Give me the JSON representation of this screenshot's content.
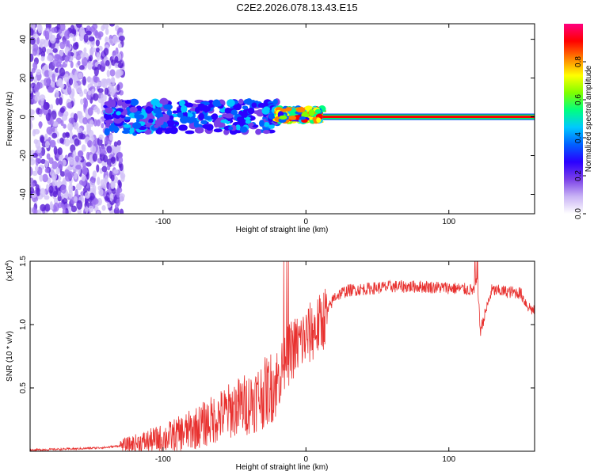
{
  "title": "C2E2.2026.078.13.43.E15",
  "colors": {
    "snr_line": "#e8312f",
    "signal_band": "#ff0000",
    "frame": "#000000"
  },
  "chart_data": [
    {
      "type": "heatmap",
      "name": "spectrogram",
      "xlabel": "Height of straight line (km)",
      "ylabel": "Frequency (Hz)",
      "xlim": [
        -193,
        160
      ],
      "ylim": [
        -50,
        48
      ],
      "xticks": [
        -100,
        0,
        100
      ],
      "yticks": [
        -40,
        -20,
        0,
        20,
        40
      ],
      "colorbar": {
        "label": "Normalized spectral amplitude",
        "range": [
          0.0,
          1.0
        ],
        "ticks": [
          0.0,
          0.2,
          0.4,
          0.6,
          0.8
        ],
        "tick_labels": [
          "0.0",
          "0.2",
          "0.4",
          "0.6",
          "0.8"
        ],
        "colormap": [
          "#ffffff",
          "#c9b3f5",
          "#7a3fe8",
          "#2a00ff",
          "#0060ff",
          "#00c8ff",
          "#00ff80",
          "#80ff00",
          "#ffff00",
          "#ff8000",
          "#ff0000",
          "#ff0080"
        ]
      },
      "regions": [
        {
          "x_range": [
            -193,
            -128
          ],
          "freq_range": [
            -50,
            48
          ],
          "amplitude": 0.05,
          "description": "broadband noise"
        },
        {
          "x_range": [
            -140,
            -20
          ],
          "center_freq": 0,
          "freq_spread": 8,
          "amplitude": 0.35
        },
        {
          "x_range": [
            -20,
            12
          ],
          "center_freq": 1,
          "freq_spread": 3,
          "amplitude": 0.7
        },
        {
          "x_range": [
            12,
            160
          ],
          "center_freq": 0,
          "freq_spread": 1.5,
          "amplitude": 0.95
        }
      ]
    },
    {
      "type": "line",
      "name": "snr",
      "xlabel": "Height of straight line (km)",
      "ylabel": "SNR (10 * v/v)",
      "y_multiplier_label": "(x10",
      "y_multiplier_exp": "4",
      "xlim": [
        -193,
        160
      ],
      "ylim": [
        0,
        1.5
      ],
      "xticks": [
        -100,
        0,
        100
      ],
      "yticks": [
        0.5,
        1.0,
        1.5
      ],
      "ytick_labels": [
        "0.5",
        "1.0",
        "1.5"
      ],
      "series": [
        {
          "name": "SNR",
          "x": [
            -193,
            -160,
            -140,
            -125,
            -110,
            -100,
            -90,
            -80,
            -70,
            -60,
            -50,
            -40,
            -30,
            -20,
            -15,
            -10,
            -5,
            0,
            5,
            10,
            15,
            20,
            25,
            30,
            40,
            60,
            80,
            100,
            110,
            118,
            120,
            122,
            130,
            150,
            155,
            160
          ],
          "values": [
            0.01,
            0.02,
            0.03,
            0.05,
            0.08,
            0.1,
            0.13,
            0.17,
            0.22,
            0.28,
            0.34,
            0.38,
            0.45,
            0.55,
            0.7,
            0.8,
            0.85,
            0.9,
            0.95,
            1.0,
            1.1,
            1.22,
            1.25,
            1.27,
            1.28,
            1.3,
            1.3,
            1.29,
            1.28,
            1.27,
            1.35,
            0.95,
            1.27,
            1.25,
            1.15,
            1.1
          ]
        }
      ]
    }
  ]
}
